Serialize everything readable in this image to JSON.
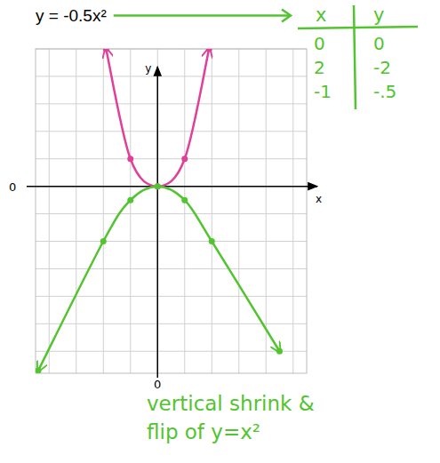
{
  "chart_data": {
    "type": "line",
    "title": "y = -0.5x²",
    "x_label": "x",
    "y_label": "y",
    "xlim": [
      -4.5,
      5.5
    ],
    "ylim": [
      -6.8,
      5
    ],
    "xticks": [
      0
    ],
    "yticks": [
      0
    ],
    "grid": true,
    "series": [
      {
        "name": "y=x²",
        "color": "#e0409a",
        "marker": "dot",
        "line_style": "arrows",
        "x": [
          -1.9,
          -1,
          0,
          1,
          1.9
        ],
        "values": [
          5,
          1,
          0,
          1,
          5
        ]
      },
      {
        "name": "y = -0.5x²",
        "color": "#52c42f",
        "marker": "dot",
        "line_style": "arrows",
        "x": [
          -4.4,
          -2,
          -1,
          0,
          1,
          2,
          4.5
        ],
        "values": [
          -6.7,
          -2,
          -0.5,
          0,
          -0.5,
          -2,
          -6
        ]
      }
    ],
    "table": {
      "columns": [
        "x",
        "y"
      ],
      "rows": [
        [
          "0",
          "0"
        ],
        [
          "2",
          "-2"
        ],
        [
          "-1",
          "-.5"
        ]
      ]
    },
    "annotation": [
      "vertical shrink &",
      "flip of y=x²"
    ]
  }
}
